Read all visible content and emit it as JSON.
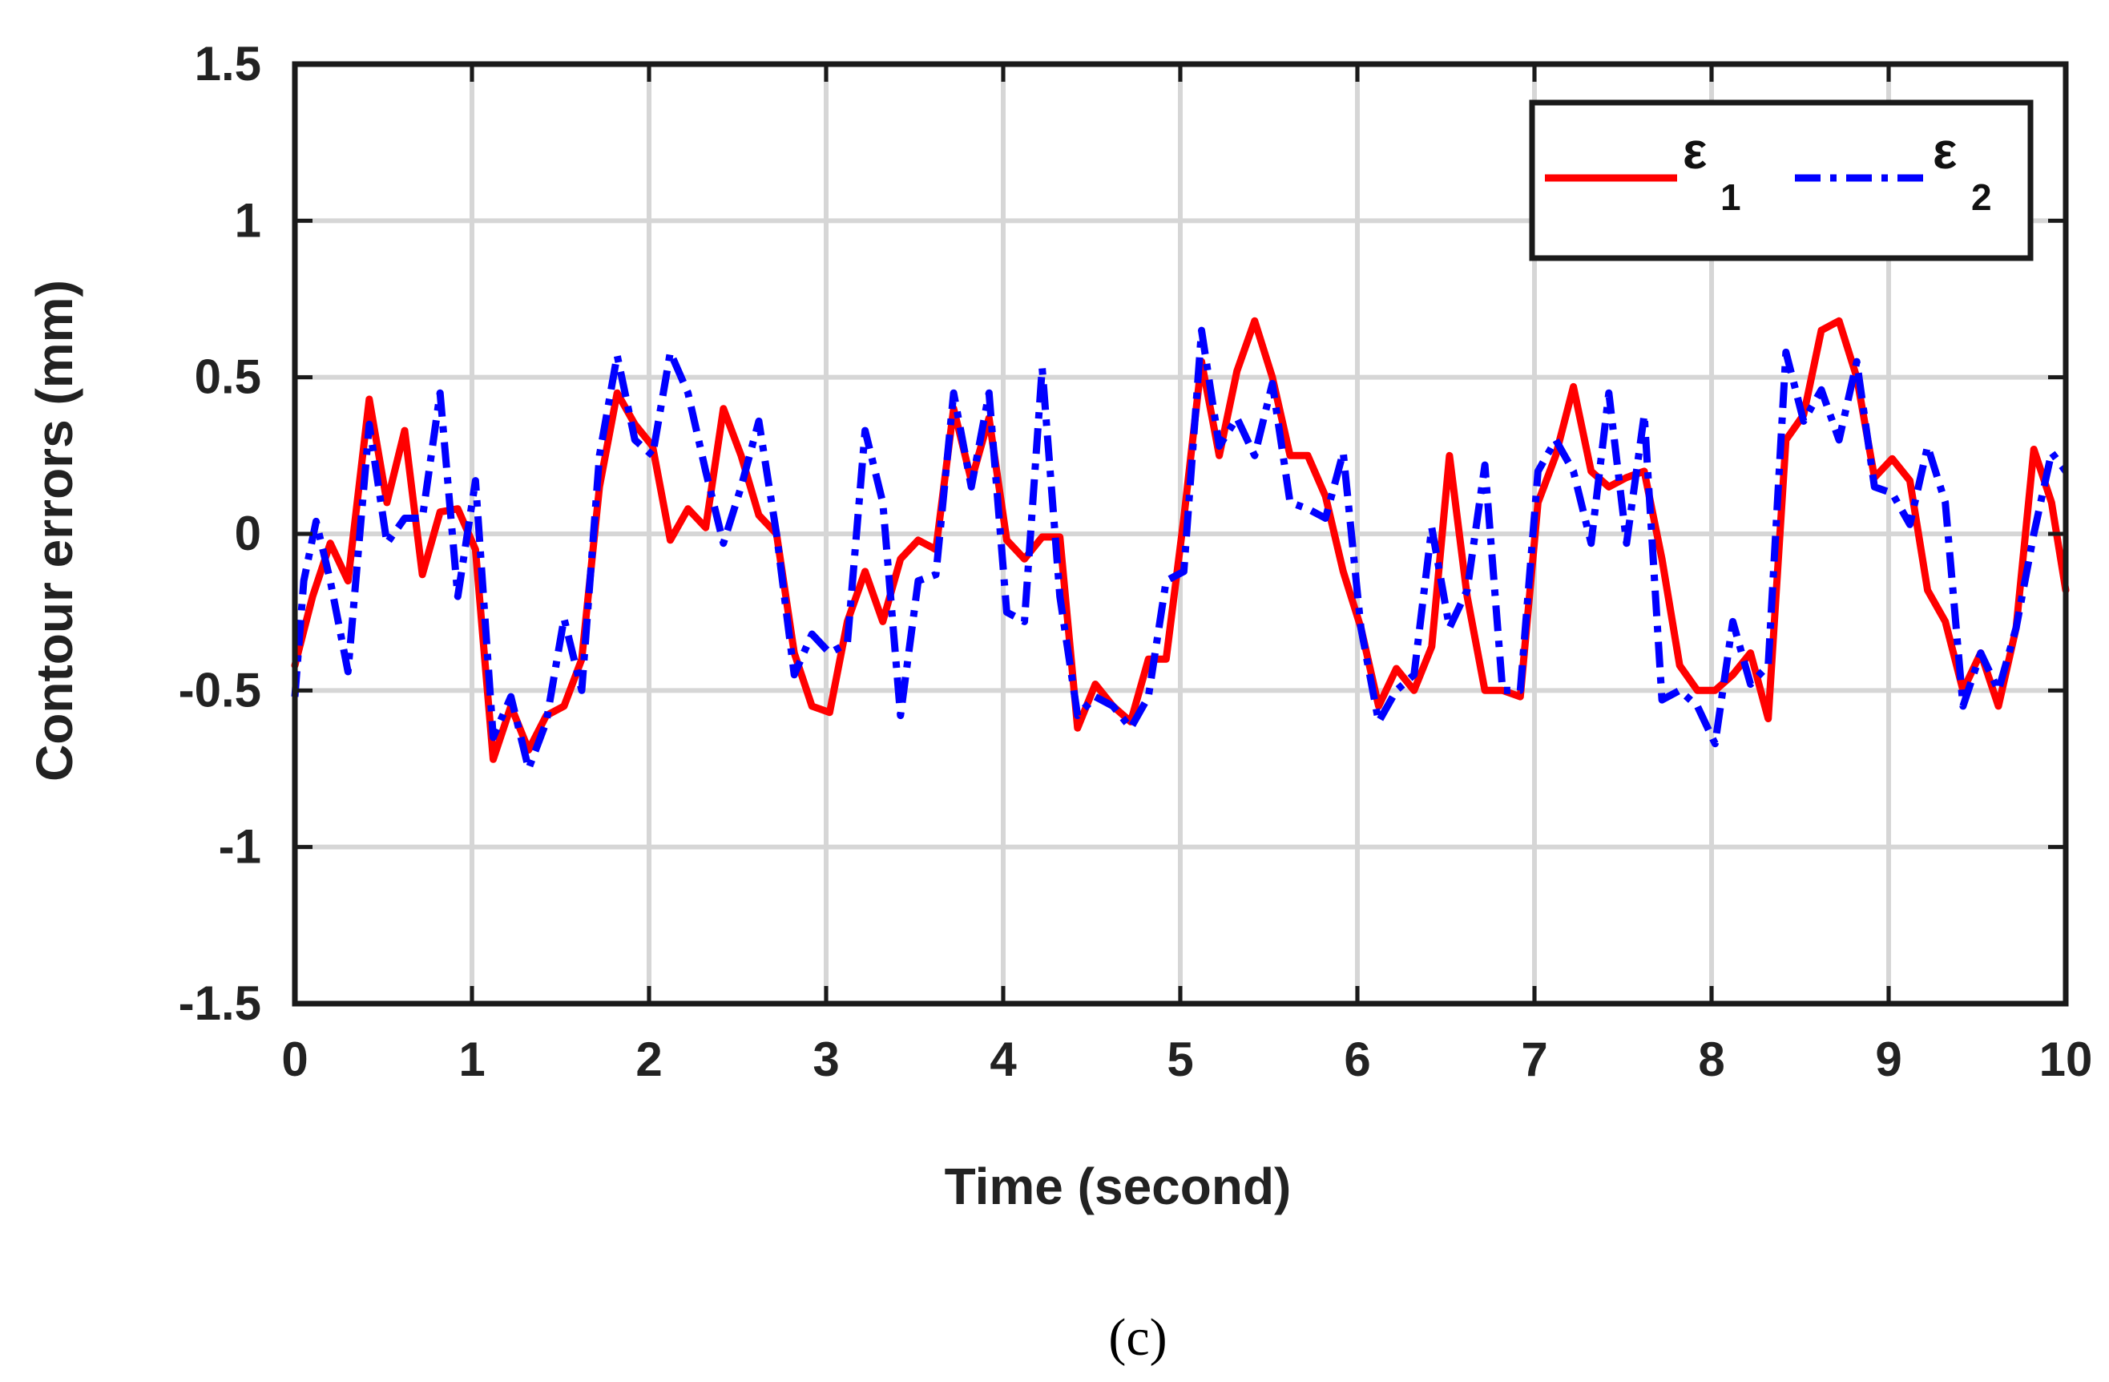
{
  "caption": "(c)",
  "chart_data": {
    "type": "line",
    "xlabel": "Time (second)",
    "ylabel": "Contour errors (mm)",
    "xlim": [
      0,
      10
    ],
    "ylim": [
      -1.5,
      1.5
    ],
    "xticks": [
      "0",
      "1",
      "2",
      "3",
      "4",
      "5",
      "6",
      "7",
      "8",
      "9",
      "10"
    ],
    "yticks": [
      "1.5",
      "1",
      "0.5",
      "0",
      "-0.5",
      "-1",
      "-1.5"
    ],
    "grid": true,
    "legend_position": "top-right",
    "series": [
      {
        "name": "ε",
        "subscript": "1",
        "color": "#ff0000",
        "style": "solid",
        "points": [
          [
            0,
            -0.42
          ],
          [
            0.1,
            -0.2
          ],
          [
            0.2,
            -0.03
          ],
          [
            0.3,
            -0.15
          ],
          [
            0.42,
            0.43
          ],
          [
            0.52,
            0.1
          ],
          [
            0.62,
            0.33
          ],
          [
            0.72,
            -0.13
          ],
          [
            0.82,
            0.07
          ],
          [
            0.92,
            0.08
          ],
          [
            1.02,
            -0.05
          ],
          [
            1.12,
            -0.72
          ],
          [
            1.22,
            -0.55
          ],
          [
            1.32,
            -0.69
          ],
          [
            1.42,
            -0.58
          ],
          [
            1.52,
            -0.55
          ],
          [
            1.62,
            -0.4
          ],
          [
            1.72,
            0.15
          ],
          [
            1.82,
            0.45
          ],
          [
            1.92,
            0.35
          ],
          [
            2.02,
            0.28
          ],
          [
            2.12,
            -0.02
          ],
          [
            2.22,
            0.08
          ],
          [
            2.32,
            0.02
          ],
          [
            2.42,
            0.4
          ],
          [
            2.52,
            0.25
          ],
          [
            2.62,
            0.06
          ],
          [
            2.72,
            0.0
          ],
          [
            2.82,
            -0.38
          ],
          [
            2.92,
            -0.55
          ],
          [
            3.02,
            -0.57
          ],
          [
            3.12,
            -0.28
          ],
          [
            3.22,
            -0.12
          ],
          [
            3.32,
            -0.28
          ],
          [
            3.42,
            -0.08
          ],
          [
            3.52,
            -0.02
          ],
          [
            3.62,
            -0.05
          ],
          [
            3.72,
            0.4
          ],
          [
            3.82,
            0.17
          ],
          [
            3.92,
            0.37
          ],
          [
            4.02,
            -0.02
          ],
          [
            4.12,
            -0.08
          ],
          [
            4.22,
            -0.01
          ],
          [
            4.32,
            -0.01
          ],
          [
            4.42,
            -0.62
          ],
          [
            4.52,
            -0.48
          ],
          [
            4.62,
            -0.55
          ],
          [
            4.72,
            -0.6
          ],
          [
            4.82,
            -0.4
          ],
          [
            4.92,
            -0.4
          ],
          [
            5.02,
            0.05
          ],
          [
            5.12,
            0.55
          ],
          [
            5.22,
            0.25
          ],
          [
            5.32,
            0.52
          ],
          [
            5.42,
            0.68
          ],
          [
            5.52,
            0.5
          ],
          [
            5.62,
            0.25
          ],
          [
            5.72,
            0.25
          ],
          [
            5.82,
            0.12
          ],
          [
            5.92,
            -0.12
          ],
          [
            6.02,
            -0.3
          ],
          [
            6.12,
            -0.55
          ],
          [
            6.22,
            -0.43
          ],
          [
            6.32,
            -0.5
          ],
          [
            6.42,
            -0.36
          ],
          [
            6.52,
            0.25
          ],
          [
            6.62,
            -0.2
          ],
          [
            6.72,
            -0.5
          ],
          [
            6.82,
            -0.5
          ],
          [
            6.92,
            -0.52
          ],
          [
            7.02,
            0.1
          ],
          [
            7.12,
            0.25
          ],
          [
            7.22,
            0.47
          ],
          [
            7.32,
            0.2
          ],
          [
            7.42,
            0.15
          ],
          [
            7.52,
            0.18
          ],
          [
            7.62,
            0.2
          ],
          [
            7.72,
            -0.08
          ],
          [
            7.82,
            -0.42
          ],
          [
            7.92,
            -0.5
          ],
          [
            8.02,
            -0.5
          ],
          [
            8.12,
            -0.45
          ],
          [
            8.22,
            -0.38
          ],
          [
            8.32,
            -0.59
          ],
          [
            8.42,
            0.3
          ],
          [
            8.52,
            0.38
          ],
          [
            8.62,
            0.65
          ],
          [
            8.72,
            0.68
          ],
          [
            8.82,
            0.5
          ],
          [
            8.92,
            0.18
          ],
          [
            9.02,
            0.24
          ],
          [
            9.12,
            0.17
          ],
          [
            9.22,
            -0.18
          ],
          [
            9.32,
            -0.28
          ],
          [
            9.42,
            -0.5
          ],
          [
            9.52,
            -0.38
          ],
          [
            9.62,
            -0.55
          ],
          [
            9.72,
            -0.3
          ],
          [
            9.82,
            0.27
          ],
          [
            9.92,
            0.1
          ],
          [
            10.0,
            -0.18
          ]
        ]
      },
      {
        "name": "ε",
        "subscript": "2",
        "color": "#0000ff",
        "style": "dashdot",
        "points": [
          [
            0,
            -0.52
          ],
          [
            0.05,
            -0.15
          ],
          [
            0.12,
            0.04
          ],
          [
            0.2,
            -0.15
          ],
          [
            0.3,
            -0.44
          ],
          [
            0.42,
            0.35
          ],
          [
            0.52,
            -0.03
          ],
          [
            0.62,
            0.05
          ],
          [
            0.72,
            0.05
          ],
          [
            0.82,
            0.45
          ],
          [
            0.92,
            -0.2
          ],
          [
            1.02,
            0.17
          ],
          [
            1.12,
            -0.65
          ],
          [
            1.22,
            -0.52
          ],
          [
            1.32,
            -0.75
          ],
          [
            1.42,
            -0.6
          ],
          [
            1.52,
            -0.27
          ],
          [
            1.62,
            -0.5
          ],
          [
            1.72,
            0.25
          ],
          [
            1.82,
            0.57
          ],
          [
            1.92,
            0.3
          ],
          [
            2.02,
            0.25
          ],
          [
            2.12,
            0.58
          ],
          [
            2.22,
            0.45
          ],
          [
            2.32,
            0.2
          ],
          [
            2.42,
            -0.03
          ],
          [
            2.52,
            0.15
          ],
          [
            2.62,
            0.36
          ],
          [
            2.72,
            0.0
          ],
          [
            2.82,
            -0.45
          ],
          [
            2.92,
            -0.32
          ],
          [
            3.02,
            -0.38
          ],
          [
            3.12,
            -0.35
          ],
          [
            3.22,
            0.33
          ],
          [
            3.32,
            0.1
          ],
          [
            3.42,
            -0.58
          ],
          [
            3.52,
            -0.15
          ],
          [
            3.62,
            -0.13
          ],
          [
            3.72,
            0.45
          ],
          [
            3.82,
            0.15
          ],
          [
            3.92,
            0.45
          ],
          [
            4.02,
            -0.25
          ],
          [
            4.12,
            -0.28
          ],
          [
            4.22,
            0.53
          ],
          [
            4.32,
            -0.2
          ],
          [
            4.42,
            -0.58
          ],
          [
            4.52,
            -0.52
          ],
          [
            4.62,
            -0.55
          ],
          [
            4.72,
            -0.62
          ],
          [
            4.82,
            -0.52
          ],
          [
            4.92,
            -0.15
          ],
          [
            5.02,
            -0.12
          ],
          [
            5.12,
            0.65
          ],
          [
            5.22,
            0.28
          ],
          [
            5.32,
            0.37
          ],
          [
            5.42,
            0.25
          ],
          [
            5.52,
            0.48
          ],
          [
            5.62,
            0.1
          ],
          [
            5.72,
            0.08
          ],
          [
            5.82,
            0.05
          ],
          [
            5.92,
            0.26
          ],
          [
            6.02,
            -0.3
          ],
          [
            6.12,
            -0.6
          ],
          [
            6.22,
            -0.5
          ],
          [
            6.32,
            -0.45
          ],
          [
            6.42,
            0.02
          ],
          [
            6.52,
            -0.3
          ],
          [
            6.62,
            -0.18
          ],
          [
            6.72,
            0.22
          ],
          [
            6.82,
            -0.5
          ],
          [
            6.92,
            -0.5
          ],
          [
            7.02,
            0.2
          ],
          [
            7.12,
            0.3
          ],
          [
            7.22,
            0.2
          ],
          [
            7.32,
            -0.03
          ],
          [
            7.42,
            0.45
          ],
          [
            7.52,
            -0.03
          ],
          [
            7.62,
            0.38
          ],
          [
            7.72,
            -0.53
          ],
          [
            7.82,
            -0.5
          ],
          [
            7.92,
            -0.55
          ],
          [
            8.02,
            -0.67
          ],
          [
            8.12,
            -0.28
          ],
          [
            8.22,
            -0.48
          ],
          [
            8.32,
            -0.42
          ],
          [
            8.42,
            0.58
          ],
          [
            8.52,
            0.36
          ],
          [
            8.62,
            0.46
          ],
          [
            8.72,
            0.3
          ],
          [
            8.82,
            0.55
          ],
          [
            8.92,
            0.15
          ],
          [
            9.02,
            0.13
          ],
          [
            9.12,
            0.03
          ],
          [
            9.22,
            0.28
          ],
          [
            9.32,
            0.1
          ],
          [
            9.42,
            -0.55
          ],
          [
            9.52,
            -0.38
          ],
          [
            9.62,
            -0.5
          ],
          [
            9.72,
            -0.3
          ],
          [
            9.82,
            0.0
          ],
          [
            9.92,
            0.26
          ],
          [
            10.0,
            0.2
          ]
        ]
      }
    ]
  }
}
